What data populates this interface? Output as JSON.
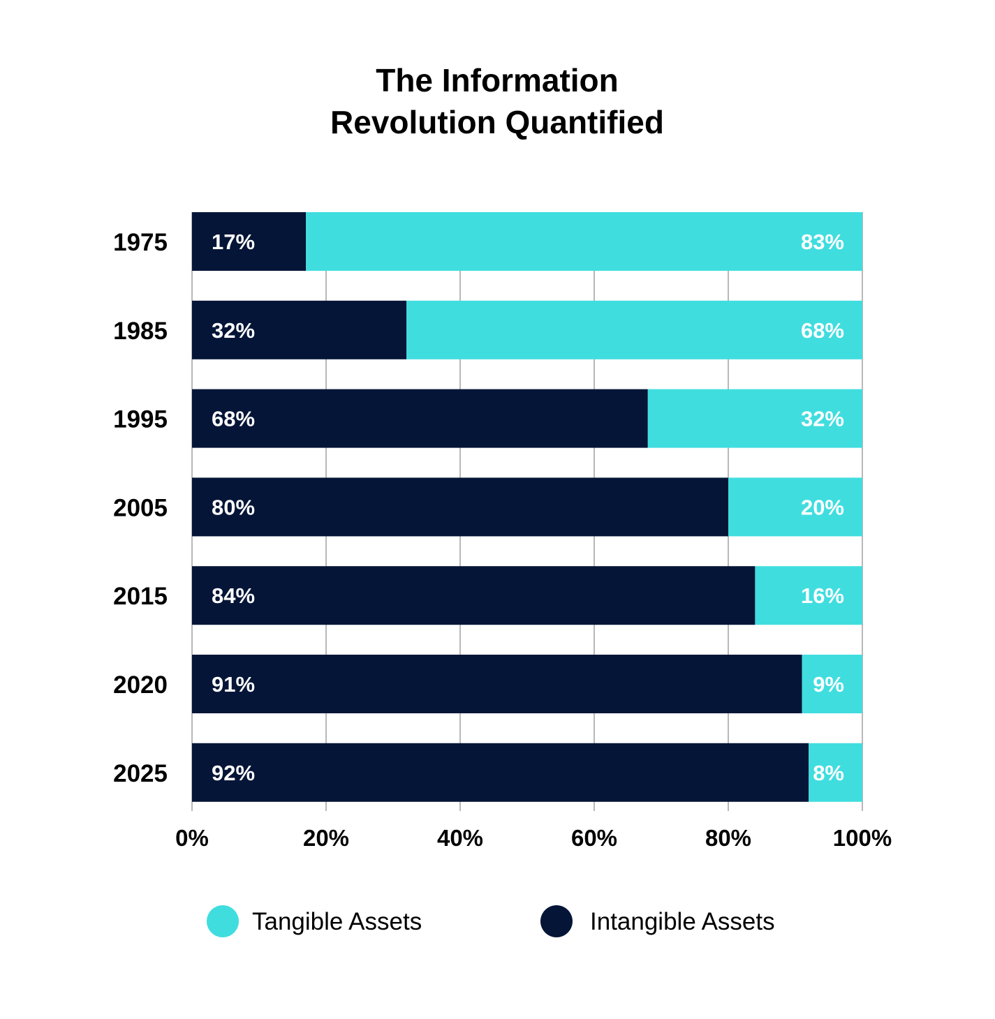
{
  "chart_data": {
    "type": "bar",
    "orientation": "horizontal",
    "stacked": true,
    "title_lines": [
      "The Information",
      "Revolution Quantified"
    ],
    "categories": [
      "1975",
      "1985",
      "1995",
      "2005",
      "2015",
      "2020",
      "2025"
    ],
    "series": [
      {
        "name": "Intangible Assets",
        "color": "#051537",
        "values": [
          17,
          32,
          68,
          80,
          84,
          91,
          92
        ],
        "labels": [
          "17%",
          "32%",
          "68%",
          "80%",
          "84%",
          "91%",
          "92%"
        ]
      },
      {
        "name": "Tangible Assets",
        "color": "#40dddf",
        "values": [
          83,
          68,
          32,
          20,
          16,
          9,
          8
        ],
        "labels": [
          "83%",
          "68%",
          "32%",
          "20%",
          "16%",
          "9%",
          "8%"
        ]
      }
    ],
    "xlim": [
      0,
      100
    ],
    "xticks": [
      0,
      20,
      40,
      60,
      80,
      100
    ],
    "xtick_labels": [
      "0%",
      "20%",
      "40%",
      "60%",
      "80%",
      "100%"
    ],
    "grid": true,
    "legend": {
      "placement": "bottom",
      "entries": [
        {
          "label": "Tangible Assets",
          "color": "#40dddf"
        },
        {
          "label": "Intangible Assets",
          "color": "#051537"
        }
      ]
    }
  }
}
